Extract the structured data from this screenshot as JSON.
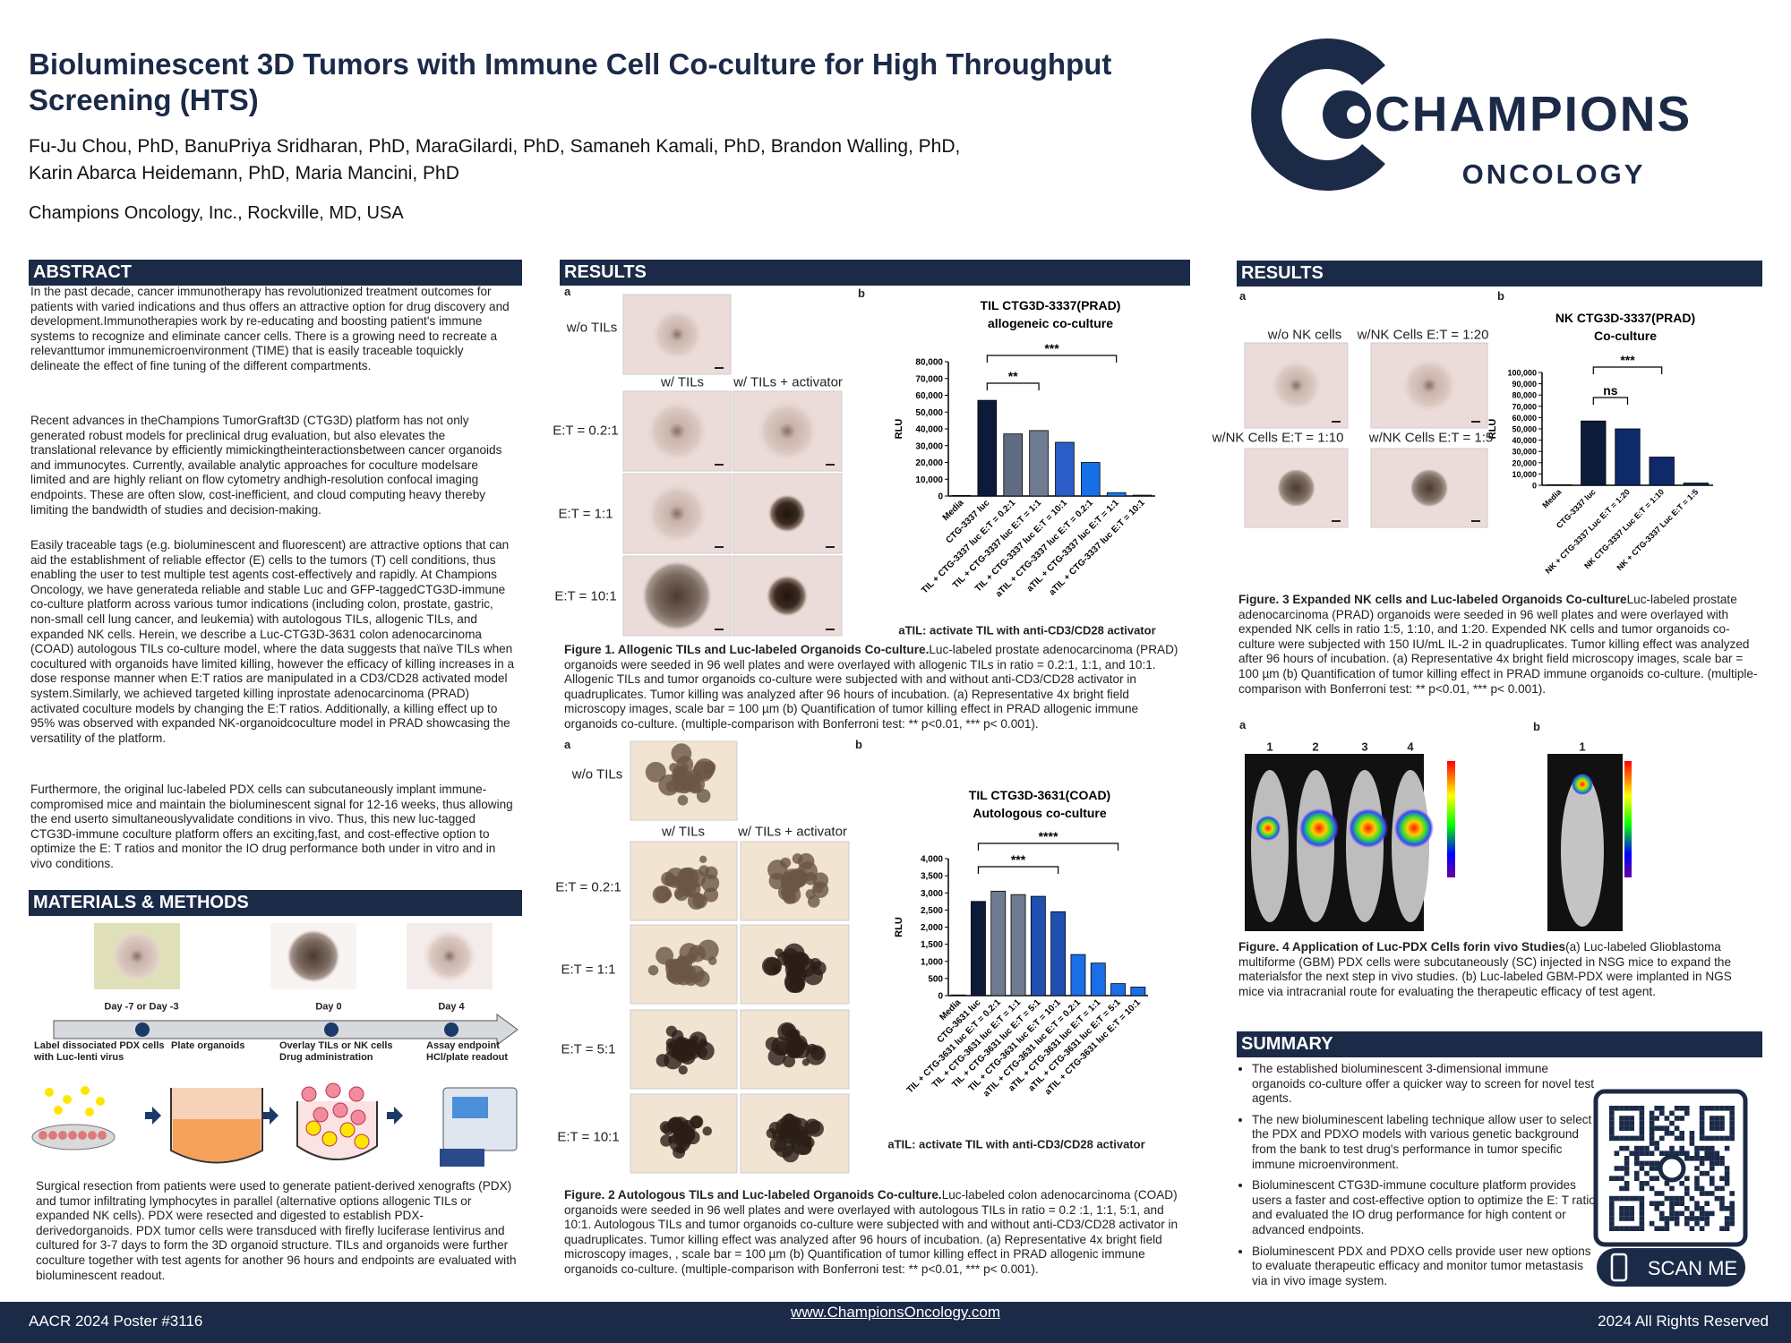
{
  "header": {
    "title": "Bioluminescent 3D Tumors with Immune Cell Co-culture for High Throughput Screening (HTS)",
    "authors": [
      "Fu-Ju Chou, PhD, BanuPriya Sridharan, PhD, MaraGilardi, PhD, Samaneh Kamali, PhD, Brandon Walling, PhD,",
      "Karin Abarca Heidemann, PhD, Maria Mancini, PhD"
    ],
    "affiliation": "Champions Oncology, Inc., Rockville, MD, USA",
    "logo": {
      "name": "CHAMPIONS",
      "sub": "ONCOLOGY"
    }
  },
  "abstract": {
    "title": "ABSTRACT",
    "paragraphs": [
      "In the past decade, cancer immunotherapy has revolutionized treatment outcomes for patients with varied indications and thus offers an attractive option for drug discovery and development.Immunotherapies work by re-educating and boosting patient's immune systems to recognize and eliminate cancer cells. There is a growing need to recreate a relevanttumor immunemicroenvironment (TIME) that is easily traceable toquickly delineate the effect of fine tuning of the different compartments.",
      "Recent advances in theChampions TumorGraft3D (CTG3D) platform has not only generated robust models for preclinical drug evaluation, but also elevates the translational relevance by efficiently mimickingtheinteractionsbetween cancer organoids and immunocytes. Currently, available analytic approaches for coculture modelsare limited and are highly reliant on flow cytometry andhigh-resolution confocal imaging endpoints. These are often slow, cost-inefficient, and cloud computing heavy thereby limiting the bandwidth of studies and decision-making.",
      "Easily traceable tags (e.g. bioluminescent and fluorescent) are attractive options that can aid the establishment of reliable effector (E) cells to the tumors (T) cell conditions, thus enabling the user to test multiple test agents cost-effectively and rapidly. At Champions Oncology, we have generateda reliable and stable Luc and GFP-taggedCTG3D-immune co-culture platform across various tumor indications (including colon, prostate, gastric, non-small cell lung cancer, and leukemia) with autologous TILs, allogenic TILs, and expanded NK cells. Herein, we describe a Luc-CTG3D-3631 colon adenocarcinoma (COAD) autologous TILs co-culture model, where the data suggests that naïve TILs when cocultured with organoids have limited killing, however the efficacy of killing increases in a dose response manner when E:T ratios are manipulated in a CD3/CD28 activated model system.Similarly, we achieved targeted killing inprostate adenocarcinoma (PRAD) activated coculture models by changing the E:T ratios. Additionally, a killing effect up to 95% was observed with expanded NK-organoidcoculture model in PRAD showcasing the versatility of the platform.",
      "Furthermore, the original luc-labeled PDX cells can subcutaneously implant immune-compromised mice and maintain the bioluminescent signal for 12-16 weeks, thus allowing the end userto simultaneouslyvalidate conditions in vivo. Thus, this new luc-tagged CTG3D-immune coculture platform offers an exciting,fast, and cost-effective option to optimize the E: T ratios and monitor the IO drug performance both under in vitro and in vivo conditions."
    ]
  },
  "methods": {
    "title": "MATERIALS & METHODS",
    "days": [
      "Day -7 or Day -3",
      "Day 0",
      "Day 4"
    ],
    "steps": [
      "Label dissociated PDX cells with Luc-lenti virus",
      "Plate organoids",
      "Overlay TILs or NK cells Drug administration",
      "Assay endpoint HCl/plate readout"
    ],
    "text": "Surgical resection from patients were used to generate patient-derived xenografts (PDX) and tumor infiltrating lymphocytes in parallel (alternative options allogenic TILs or expanded NK cells). PDX were resected and digested to establish PDX-derivedorganoids. PDX tumor cells were transduced with firefly luciferase lentivirus and cultured for 3-7 days to form the 3D organoid structure. TILs and organoids were further coculture together with test agents for another 96 hours and endpoints are evaluated with bioluminescent readout."
  },
  "results_middle": {
    "title": "RESULTS",
    "figure1": {
      "panels": [
        "a",
        "b"
      ],
      "labels": [
        "w/o TILs",
        "w/ TILs",
        "w/ TILs + activator",
        "E:T = 0.2:1",
        "E:T = 1:1",
        "E:T = 10:1"
      ],
      "note": "aTIL: activate TIL with anti-CD3/CD28 activator",
      "caption": {
        "title": "Figure 1. Allogenic TILs and Luc-labeled Organoids Co-culture.",
        "text": "Luc-labeled prostate adenocarcinoma (PRAD) organoids were seeded in 96 well plates and were overlayed with allogenic TILs in ratio = 0.2:1, 1:1, and 10:1. Allogenic TILs and tumor organoids co-culture were subjected with and without anti-CD3/CD28 activator in quadruplicates. Tumor killing was analyzed after 96 hours of incubation. (a) Representative 4x bright field microscopy images, scale bar = 100 µm (b) Quantification of tumor killing effect in PRAD allogenic immune organoids co-culture. (multiple-comparison with Bonferroni test: ** p<0.01, *** p< 0.001)."
      }
    },
    "figure2": {
      "panels": [
        "a",
        "b"
      ],
      "labels": [
        "w/o TILs",
        "w/ TILs",
        "w/ TILs + activator",
        "E:T = 0.2:1",
        "E:T = 1:1",
        "E:T = 5:1",
        "E:T = 10:1"
      ],
      "note": "aTIL: activate TIL with anti-CD3/CD28 activator",
      "caption": {
        "title": "Figure. 2 Autologous TILs and Luc-labeled Organoids Co-culture.",
        "text": "Luc-labeled colon adenocarcinoma (COAD) organoids were seeded in 96 well plates and were overlayed with autologous TILs in ratio = 0.2 :1, 1:1, 5:1, and 10:1. Autologous TILs and tumor organoids co-culture were subjected with and without anti-CD3/CD28 activator in quadruplicates. Tumor killing effect was analyzed after 96 hours of incubation. (a) Representative 4x bright field microscopy images, , scale bar = 100 µm (b) Quantification of tumor killing effect in PRAD allogenic immune organoids co-culture. (multiple-comparison with Bonferroni test: ** p<0.01, *** p< 0.001)."
      }
    }
  },
  "results_right": {
    "title": "RESULTS",
    "figure3": {
      "panels": [
        "a",
        "b"
      ],
      "labels": [
        "w/o NK cells",
        "w/NK Cells E:T = 1:20",
        "w/NK Cells E:T = 1:10",
        "w/NK Cells E:T = 1:5"
      ],
      "caption": {
        "title": "Figure. 3 Expanded NK cells and Luc-labeled Organoids Co-culture",
        "text": "Luc-labeled prostate adenocarcinoma (PRAD) organoids were seeded in 96 well plates and were overlayed with expended NK cells in ratio 1:5, 1:10, and 1:20. Expended NK cells and tumor organoids co-culture were subjected with 150 IU/mL IL-2 in quadruplicates. Tumor killing effect was analyzed after 96 hours of incubation. (a) Representative 4x bright field microscopy images, scale bar = 100 µm (b) Quantification of tumor killing effect in PRAD immune organoids co-culture. (multiple-comparison with Bonferroni test: ** p<0.01, *** p< 0.001)."
      }
    },
    "figure4": {
      "panels": [
        "a",
        "b"
      ],
      "mice_a": [
        "1",
        "2",
        "3",
        "4"
      ],
      "mice_b": [
        "1"
      ],
      "caption": {
        "title": "Figure. 4 Application of Luc-PDX Cells forin vivo Studies",
        "text": "(a) Luc-labeled Glioblastoma multiforme (GBM) PDX cells were subcutaneously (SC) injected in NSG mice to expand the materialsfor the next step in vivo studies. (b) Luc-labeled GBM-PDX were implanted in NGS mice via intracranial route for evaluating the therapeutic efficacy of test agent."
      }
    },
    "summary": {
      "title": "SUMMARY",
      "bullets": [
        "The established bioluminescent 3-dimensional immune organoids co-culture offer a quicker way to screen for novel test agents.",
        "The new bioluminescent labeling technique allow user to select the PDX and PDXO models with various genetic background from the bank to test drug's performance in tumor specific immune microenvironment.",
        "Bioluminescent CTG3D-immune coculture platform provides users a faster and cost-effective option to optimize the E: T ratio and evaluated the IO drug performance for high content or advanced endpoints.",
        "Bioluminescent PDX and PDXO cells provide user new options to evaluate therapeutic efficacy and monitor tumor metastasis via in vivo image system."
      ]
    },
    "scan": "SCAN ME"
  },
  "footer": [
    "AACR 2024 Poster #3116",
    "www.ChampionsOncology.com",
    "2024 All Rights Reserved"
  ],
  "chart_data": [
    {
      "type": "bar",
      "title": "TIL CTG3D-3337(PRAD)",
      "subtitle": "allogeneic co-culture",
      "y_label": "RLU",
      "categories": [
        "Media",
        "CTG-3337 luc",
        "TIL + CTG-3337 luc E:T = 0.2:1",
        "TIL + CTG-3337 luc E:T = 1:1",
        "TIL + CTG-3337 luc E:T = 10:1",
        "aTIL + CTG-3337 luc E:T = 0.2:1",
        "aTIL + CTG-3337 luc E:T = 1:1",
        "aTIL + CTG-3337 luc E:T = 10:1"
      ],
      "values": [
        300,
        57000,
        37000,
        39000,
        32000,
        20000,
        2000,
        500
      ],
      "colors": [
        "#0d1b3a",
        "#0d1b3a",
        "#5f6b80",
        "#6f7b90",
        "#2b5cc8",
        "#1570e6",
        "#1a7cf0",
        "#1a7cf0"
      ],
      "ylim": [
        0,
        80000
      ],
      "yticks": [
        0,
        {
          "value": 10000,
          "label": "10,000"
        },
        {
          "value": 20000,
          "label": "20,000"
        },
        {
          "value": 30000,
          "label": "30,000"
        },
        {
          "value": 40000,
          "label": "40,000"
        },
        {
          "value": 50000,
          "label": "50,000"
        },
        {
          "value": 60000,
          "label": "60,000"
        },
        {
          "value": 70000,
          "label": "70,000"
        },
        {
          "value": 80000,
          "label": "80,000"
        }
      ],
      "annotations": [
        "***",
        "**"
      ]
    },
    {
      "type": "bar",
      "title": "TIL  CTG3D-3631(COAD)",
      "subtitle": "Autologous co-culture",
      "y_label": "RLU",
      "categories": [
        "Media",
        "CTG-3631 luc",
        "TIL + CTG-3631 luc E:T = 0.2:1",
        "TIL + CTG-3631 luc E:T = 1:1",
        "TIL + CTG-3631 luc E:T = 5:1",
        "TIL + CTG-3631 luc E:T = 10:1",
        "aTIL + CTG-3631 luc E:T = 0.2:1",
        "aTIL + CTG-3631 luc E:T = 1:1",
        "aTIL + CTG-3631 luc E:T = 5:1",
        "aTIL + CTG-3631 luc E:T = 10:1"
      ],
      "values": [
        20,
        2750,
        3050,
        2950,
        2900,
        2450,
        1200,
        950,
        350,
        250
      ],
      "colors": [
        "#0d1b3a",
        "#0d1b3a",
        "#6f7b90",
        "#6f7b90",
        "#1f4fb0",
        "#1f4fb0",
        "#1a6fe8",
        "#1a6fe8",
        "#1a6fe8",
        "#1a6fe8"
      ],
      "ylim": [
        0,
        4000
      ],
      "yticks": [
        0,
        500,
        {
          "value": 1000,
          "label": "1,000"
        },
        {
          "value": 1500,
          "label": "1,500"
        },
        {
          "value": 2000,
          "label": "2,000"
        },
        {
          "value": 2500,
          "label": "2,500"
        },
        {
          "value": 3000,
          "label": "3,000"
        },
        {
          "value": 3500,
          "label": "3,500"
        },
        {
          "value": 4000,
          "label": "4,000"
        }
      ],
      "annotations": [
        "****",
        "***"
      ]
    },
    {
      "type": "bar",
      "title": "NK CTG3D-3337(PRAD)",
      "subtitle": "Co-culture",
      "y_label": "RLU",
      "categories": [
        "Media",
        "CTG-3337 luc",
        "NK + CTG-3337 Luc E:T = 1:20",
        "NK CTG-3337 Luc E:T = 1:10",
        "NK + CTG-3337 Luc E:T = 1:5"
      ],
      "values": [
        500,
        57000,
        50000,
        25000,
        2000
      ],
      "colors": [
        "#0d1b3a",
        "#0d1b3a",
        "#0f2a6a",
        "#0f2a6a",
        "#0f2a6a"
      ],
      "ylim": [
        0,
        100000
      ],
      "yticks": [
        0,
        {
          "value": 10000,
          "label": "10,000"
        },
        {
          "value": 20000,
          "label": "20,000"
        },
        {
          "value": 30000,
          "label": "30,000"
        },
        {
          "value": 40000,
          "label": "40,000"
        },
        {
          "value": 50000,
          "label": "50,000"
        },
        {
          "value": 60000,
          "label": "60,000"
        },
        {
          "value": 70000,
          "label": "70,000"
        },
        {
          "value": 80000,
          "label": "80,000"
        },
        {
          "value": 90000,
          "label": "90,000"
        },
        {
          "value": 100000,
          "label": "100,000"
        }
      ],
      "annotations": [
        "***",
        "ns"
      ]
    }
  ]
}
